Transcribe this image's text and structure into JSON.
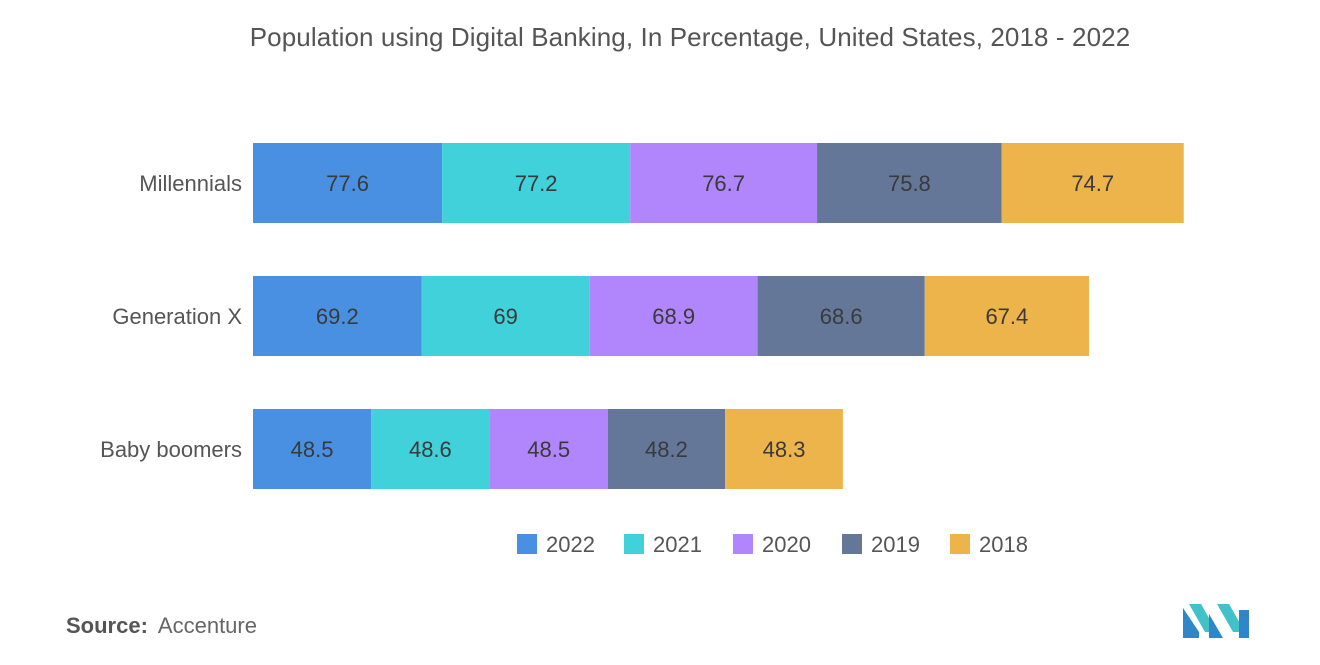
{
  "title": "Population using Digital Banking, In Percentage, United States, 2018 - 2022",
  "source": {
    "label": "Source:",
    "value": "Accenture"
  },
  "colors": {
    "2022": "#4a90e2",
    "2021": "#40d1da",
    "2020": "#b185fb",
    "2019": "#647799",
    "2018": "#ecb44b"
  },
  "logo_icon": "mordor-logo-icon",
  "chart_data": {
    "type": "bar",
    "orientation": "horizontal",
    "stacked": true,
    "categories": [
      "Millennials",
      "Generation X",
      "Baby boomers"
    ],
    "series": [
      {
        "name": "2022",
        "values": [
          77.6,
          69.2,
          48.5
        ]
      },
      {
        "name": "2021",
        "values": [
          77.2,
          69,
          48.6
        ]
      },
      {
        "name": "2020",
        "values": [
          76.7,
          68.9,
          48.5
        ]
      },
      {
        "name": "2019",
        "values": [
          75.8,
          68.6,
          48.2
        ]
      },
      {
        "name": "2018",
        "values": [
          74.7,
          67.4,
          48.3
        ]
      }
    ],
    "legend_position": "bottom",
    "grid": false,
    "xlabel": "",
    "ylabel": ""
  }
}
